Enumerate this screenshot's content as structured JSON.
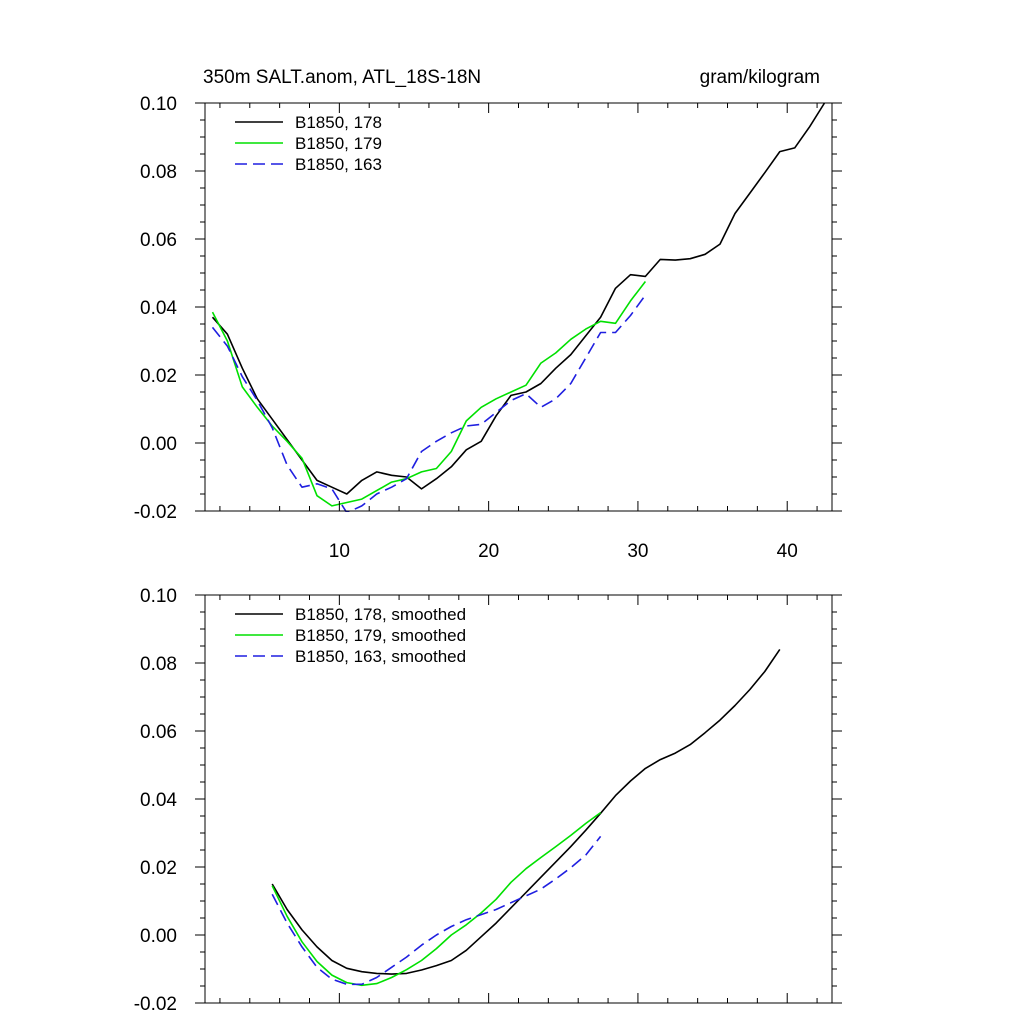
{
  "chart_data": [
    {
      "type": "line",
      "title": "350m SALT.anom, ATL_18S-18N",
      "units": "gram/kilogram",
      "xlabel": "",
      "ylabel": "",
      "xlim": [
        1,
        43
      ],
      "ylim": [
        -0.02,
        0.1
      ],
      "xticks": [
        10,
        20,
        30,
        40
      ],
      "xtick_labels": [
        "10",
        "20",
        "30",
        "40"
      ],
      "yticks": [
        -0.02,
        0.0,
        0.02,
        0.04,
        0.06,
        0.08,
        0.1
      ],
      "ytick_labels": [
        "-0.02",
        "0.00",
        "0.02",
        "0.04",
        "0.06",
        "0.08",
        "0.10"
      ],
      "legend_position": "top-left",
      "series": [
        {
          "name": "B1850, 178",
          "color": "#000000",
          "dash": "solid",
          "x": [
            1.5,
            2.5,
            3.5,
            4.5,
            5.5,
            6.5,
            7.5,
            8.5,
            9.5,
            10.5,
            11.5,
            12.5,
            13.5,
            14.5,
            15.5,
            16.5,
            17.5,
            18.5,
            19.5,
            20.5,
            21.5,
            22.5,
            23.5,
            24.5,
            25.5,
            26.5,
            27.5,
            28.5,
            29.5,
            30.5,
            31.5,
            32.5,
            33.5,
            34.5,
            35.5,
            36.5,
            37.5,
            38.5,
            39.5,
            40.5,
            41.5,
            42.5
          ],
          "y": [
            0.037,
            0.032,
            0.022,
            0.013,
            0.007,
            0.001,
            -0.005,
            -0.011,
            -0.013,
            -0.015,
            -0.011,
            -0.0085,
            -0.0095,
            -0.01,
            -0.0135,
            -0.0105,
            -0.007,
            -0.002,
            0.0005,
            0.008,
            0.014,
            0.015,
            0.0175,
            0.022,
            0.026,
            0.0315,
            0.037,
            0.0455,
            0.0495,
            0.049,
            0.054,
            0.0538,
            0.0542,
            0.0555,
            0.0585,
            0.0675,
            0.0735,
            0.0795,
            0.0857,
            0.0868,
            0.093,
            0.1
          ]
        },
        {
          "name": "B1850, 179",
          "color": "#00e000",
          "dash": "solid",
          "x": [
            1.5,
            2.5,
            3.5,
            4.5,
            5.5,
            6.5,
            7.5,
            8.5,
            9.5,
            10.5,
            11.5,
            12.5,
            13.5,
            14.5,
            15.5,
            16.5,
            17.5,
            18.5,
            19.5,
            20.5,
            21.5,
            22.5,
            23.5,
            24.5,
            25.5,
            26.5,
            27.5,
            28.5,
            29.5,
            30.5
          ],
          "y": [
            0.0385,
            0.03,
            0.0165,
            0.0105,
            0.005,
            0.0005,
            -0.0045,
            -0.0155,
            -0.0185,
            -0.0175,
            -0.0165,
            -0.014,
            -0.0115,
            -0.0105,
            -0.0085,
            -0.0075,
            -0.0025,
            0.0065,
            0.0105,
            0.013,
            0.015,
            0.017,
            0.0235,
            0.0265,
            0.0305,
            0.0335,
            0.0358,
            0.0352,
            0.0418,
            0.0475
          ]
        },
        {
          "name": "B1850, 163",
          "color": "#1f1fe0",
          "dash": "dashed",
          "x": [
            1.5,
            2.5,
            3.5,
            4.5,
            5.5,
            6.5,
            7.5,
            8.5,
            9.5,
            10.5,
            11.5,
            12.5,
            13.5,
            14.5,
            15.5,
            16.5,
            17.5,
            18.5,
            19.5,
            20.5,
            21.5,
            22.5,
            23.5,
            24.5,
            25.5,
            26.5,
            27.5,
            28.5,
            29.5,
            30.5
          ],
          "y": [
            0.034,
            0.0285,
            0.0195,
            0.0125,
            0.0045,
            -0.0065,
            -0.013,
            -0.012,
            -0.0135,
            -0.0205,
            -0.0185,
            -0.015,
            -0.013,
            -0.0105,
            -0.0025,
            0.0005,
            0.003,
            0.005,
            0.0055,
            0.009,
            0.0125,
            0.0145,
            0.0105,
            0.013,
            0.0175,
            0.025,
            0.0325,
            0.0325,
            0.0375,
            0.0435
          ]
        }
      ]
    },
    {
      "type": "line",
      "title": "",
      "xlabel": "",
      "ylabel": "",
      "xlim": [
        1,
        43
      ],
      "ylim": [
        -0.02,
        0.1
      ],
      "xticks": [
        10,
        20,
        30,
        40
      ],
      "yticks": [
        -0.02,
        0.0,
        0.02,
        0.04,
        0.06,
        0.08,
        0.1
      ],
      "ytick_labels": [
        "-0.02",
        "0.00",
        "0.02",
        "0.04",
        "0.06",
        "0.08",
        "0.10"
      ],
      "legend_position": "top-left",
      "series": [
        {
          "name": "B1850, 178, smoothed",
          "color": "#000000",
          "dash": "solid",
          "x": [
            5.5,
            6.5,
            7.5,
            8.5,
            9.5,
            10.5,
            11.5,
            12.5,
            13.5,
            14.5,
            15.5,
            16.5,
            17.5,
            18.5,
            19.5,
            20.5,
            21.5,
            22.5,
            23.5,
            24.5,
            25.5,
            26.5,
            27.5,
            28.5,
            29.5,
            30.5,
            31.5,
            32.5,
            33.5,
            34.5,
            35.5,
            36.5,
            37.5,
            38.5,
            39.5
          ],
          "y": [
            0.015,
            0.0075,
            0.0015,
            -0.0035,
            -0.0075,
            -0.0098,
            -0.0108,
            -0.0113,
            -0.0115,
            -0.0113,
            -0.0103,
            -0.009,
            -0.0075,
            -0.0045,
            -0.0005,
            0.0035,
            0.008,
            0.0125,
            0.017,
            0.0215,
            0.026,
            0.0308,
            0.0358,
            0.041,
            0.0453,
            0.049,
            0.0516,
            0.0535,
            0.056,
            0.0595,
            0.0632,
            0.0675,
            0.0722,
            0.0775,
            0.084
          ]
        },
        {
          "name": "B1850, 179, smoothed",
          "color": "#00e000",
          "dash": "solid",
          "x": [
            5.5,
            6.5,
            7.5,
            8.5,
            9.5,
            10.5,
            11.5,
            12.5,
            13.5,
            14.5,
            15.5,
            16.5,
            17.5,
            18.5,
            19.5,
            20.5,
            21.5,
            22.5,
            23.5,
            24.5,
            25.5,
            26.5,
            27.5
          ],
          "y": [
            0.0145,
            0.0055,
            -0.002,
            -0.0078,
            -0.0118,
            -0.014,
            -0.0148,
            -0.0143,
            -0.0125,
            -0.0102,
            -0.0075,
            -0.004,
            0.0,
            0.003,
            0.0065,
            0.0105,
            0.0155,
            0.0195,
            0.0228,
            0.026,
            0.0293,
            0.0328,
            0.036
          ]
        },
        {
          "name": "B1850, 163, smoothed",
          "color": "#1f1fe0",
          "dash": "dashed",
          "x": [
            5.5,
            6.5,
            7.5,
            8.5,
            9.5,
            10.5,
            11.5,
            12.5,
            13.5,
            14.5,
            15.5,
            16.5,
            17.5,
            18.5,
            19.5,
            20.5,
            21.5,
            22.5,
            23.5,
            24.5,
            25.5,
            26.5,
            27.5
          ],
          "y": [
            0.012,
            0.0035,
            -0.0035,
            -0.0095,
            -0.013,
            -0.0145,
            -0.0145,
            -0.0125,
            -0.0095,
            -0.0065,
            -0.003,
            0.0,
            0.0025,
            0.0045,
            0.006,
            0.0075,
            0.0095,
            0.0115,
            0.0135,
            0.0165,
            0.0198,
            0.0235,
            0.029
          ]
        }
      ]
    }
  ]
}
